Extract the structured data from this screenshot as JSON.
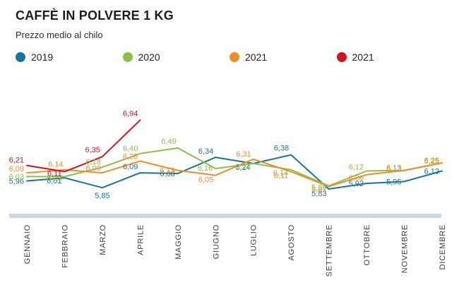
{
  "header": {
    "title": "CAFFÈ IN POLVERE 1 KG",
    "subtitle": "Prezzo medio al chilo"
  },
  "legend": [
    {
      "label": "2019",
      "color": "#17739f"
    },
    {
      "label": "2020",
      "color": "#8cc04b"
    },
    {
      "label": "2021",
      "color": "#f28c2b"
    },
    {
      "label": "2021",
      "color": "#d8101e"
    }
  ],
  "chart_data": {
    "type": "line",
    "title": "CAFFÈ IN POLVERE 1 KG",
    "subtitle": "Prezzo medio al chilo",
    "categories": [
      "GENNAIO",
      "FEBBRAIO",
      "MARZO",
      "APRILE",
      "MAGGIO",
      "GIUGNO",
      "LUGLIO",
      "AGOSTO",
      "SETTEMBRE",
      "OTTOBRE",
      "NOVEMBRE",
      "DICEMBRE"
    ],
    "series": [
      {
        "name": "2019",
        "color": "#17739f",
        "values": [
          5.96,
          6.01,
          5.85,
          6.09,
          6.08,
          6.34,
          6.24,
          6.38,
          5.83,
          5.92,
          5.95,
          6.12
        ]
      },
      {
        "name": "2020",
        "color": "#8cc04b",
        "values": [
          6.03,
          6.03,
          6.18,
          6.4,
          6.49,
          6.16,
          6.24,
          6.14,
          5.88,
          6.12,
          6.13,
          6.25
        ]
      },
      {
        "name": "2021",
        "color": "#f28c2b",
        "values": [
          6.09,
          6.14,
          6.09,
          6.28,
          6.13,
          6.05,
          6.31,
          6.11,
          5.87,
          6.06,
          6.13,
          6.25
        ]
      },
      {
        "name": "2021",
        "color": "#d8101e",
        "values": [
          6.21,
          6.11,
          6.35,
          6.94,
          null,
          null,
          null,
          null,
          null,
          null,
          null,
          null
        ]
      }
    ],
    "ylim": [
      5.7,
      7.0
    ],
    "decimal_separator": ",",
    "grid": false,
    "legend_position": "top",
    "data_labels": true,
    "axis_bar_color": "#cdd9de"
  }
}
